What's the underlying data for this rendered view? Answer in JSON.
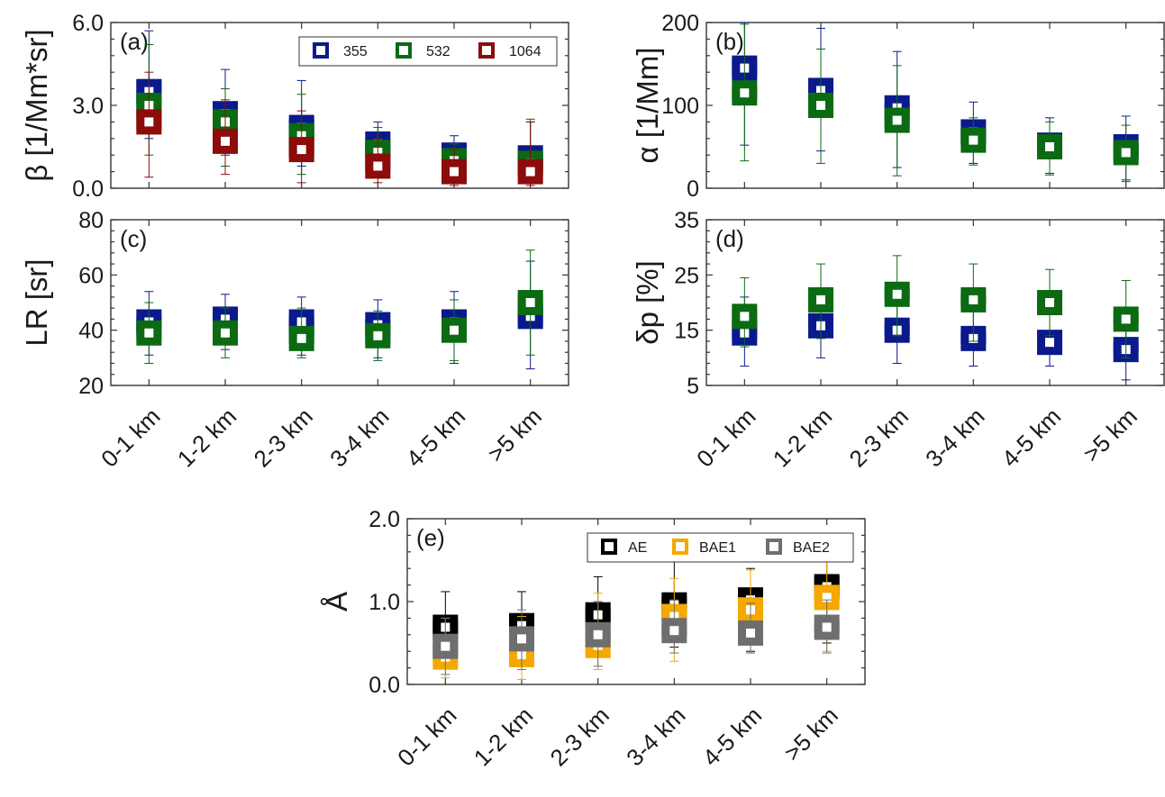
{
  "figure": {
    "categories": [
      "0-1 km",
      "1-2 km",
      "2-3 km",
      "3-4 km",
      "4-5 km",
      ">5 km"
    ],
    "colors": {
      "355": "#0a1a8c",
      "532": "#0b6a12",
      "1064": "#8c0b0b",
      "AE": "#000000",
      "BAE1": "#f5a800",
      "BAE2": "#6e6e6e"
    }
  },
  "chart_data": [
    {
      "type": "box",
      "panel": "(a)",
      "ylabel": "β [1/Mm*sr]",
      "ylim": [
        0,
        6
      ],
      "yticks": [
        "0.0",
        "3.0",
        "6.0"
      ],
      "legend": [
        "355",
        "532",
        "1064"
      ],
      "legend_position": "top-right",
      "series": [
        {
          "name": "355",
          "median": [
            3.5,
            2.7,
            2.2,
            1.6,
            1.2,
            1.1
          ],
          "q1": [
            3.1,
            2.3,
            1.8,
            1.3,
            0.9,
            0.8
          ],
          "q3": [
            3.9,
            3.0,
            2.5,
            1.8,
            1.4,
            1.3
          ],
          "whisker_low": [
            1.8,
            1.2,
            0.8,
            0.6,
            0.5,
            0.5
          ],
          "whisker_high": [
            5.7,
            4.3,
            3.9,
            2.4,
            1.9,
            2.4
          ]
        },
        {
          "name": "532",
          "median": [
            3.0,
            2.4,
            1.9,
            1.3,
            1.0,
            0.9
          ],
          "q1": [
            2.7,
            2.1,
            1.6,
            1.1,
            0.8,
            0.7
          ],
          "q3": [
            3.3,
            2.7,
            2.2,
            1.6,
            1.2,
            1.1
          ],
          "whisker_low": [
            1.2,
            0.8,
            0.5,
            0.4,
            0.3,
            0.3
          ],
          "whisker_high": [
            5.2,
            3.6,
            3.4,
            2.2,
            1.6,
            2.5
          ]
        },
        {
          "name": "1064",
          "median": [
            2.4,
            1.7,
            1.4,
            0.8,
            0.6,
            0.6
          ],
          "q1": [
            2.1,
            1.5,
            1.1,
            0.6,
            0.45,
            0.45
          ],
          "q3": [
            2.7,
            2.0,
            1.6,
            1.0,
            0.8,
            0.8
          ],
          "whisker_low": [
            0.4,
            0.5,
            0.2,
            0.2,
            0.1,
            0.1
          ],
          "whisker_high": [
            4.2,
            3.2,
            2.8,
            1.8,
            1.4,
            2.4
          ]
        }
      ]
    },
    {
      "type": "box",
      "panel": "(b)",
      "ylabel": "α [1/Mm]",
      "ylim": [
        0,
        200
      ],
      "yticks": [
        "0",
        "100",
        "200"
      ],
      "series": [
        {
          "name": "355",
          "median": [
            145,
            118,
            97,
            68,
            52,
            50
          ],
          "q1": [
            135,
            108,
            88,
            62,
            46,
            43
          ],
          "q3": [
            155,
            125,
            103,
            72,
            56,
            55
          ],
          "whisker_low": [
            52,
            45,
            25,
            30,
            18,
            10
          ],
          "whisker_high": [
            200,
            193,
            165,
            104,
            85,
            87
          ]
        },
        {
          "name": "532",
          "median": [
            115,
            100,
            82,
            58,
            50,
            43
          ],
          "q1": [
            107,
            92,
            74,
            52,
            44,
            37
          ],
          "q3": [
            123,
            107,
            90,
            63,
            55,
            48
          ],
          "whisker_low": [
            33,
            30,
            15,
            28,
            16,
            8
          ],
          "whisker_high": [
            198,
            168,
            148,
            85,
            80,
            76
          ]
        }
      ]
    },
    {
      "type": "box",
      "panel": "(c)",
      "ylabel": "LR [sr]",
      "ylim": [
        20,
        80
      ],
      "yticks": [
        "20",
        "40",
        "60",
        "80"
      ],
      "series": [
        {
          "name": "355",
          "median": [
            43,
            44,
            43,
            42,
            43,
            45
          ],
          "q1": [
            40,
            41,
            40,
            39,
            40,
            42
          ],
          "q3": [
            45,
            47,
            45,
            44,
            44,
            48
          ],
          "whisker_low": [
            31,
            33,
            31,
            30,
            28,
            26
          ],
          "whisker_high": [
            54,
            53,
            52,
            51,
            54,
            65
          ]
        },
        {
          "name": "532",
          "median": [
            39,
            39,
            37,
            38,
            40,
            50
          ],
          "q1": [
            37,
            37,
            35,
            35,
            38,
            46
          ],
          "q3": [
            42,
            42,
            40,
            41,
            42,
            53
          ],
          "whisker_low": [
            28,
            30,
            30,
            29,
            29,
            31
          ],
          "whisker_high": [
            50,
            48,
            48,
            47,
            51,
            69
          ]
        }
      ]
    },
    {
      "type": "box",
      "panel": "(d)",
      "ylabel": "δp [%]",
      "ylim": [
        5,
        35
      ],
      "yticks": [
        "5",
        "15",
        "25",
        "35"
      ],
      "series": [
        {
          "name": "355",
          "median": [
            14.5,
            15.8,
            15.0,
            13.5,
            12.8,
            11.5
          ],
          "q1": [
            13.5,
            14.8,
            14.0,
            12.5,
            12.0,
            10.8
          ],
          "q3": [
            16.0,
            17.0,
            16.2,
            14.8,
            14.0,
            12.8
          ],
          "whisker_low": [
            8.5,
            10.0,
            9.0,
            8.5,
            8.5,
            6.0
          ],
          "whisker_high": [
            21.0,
            21.5,
            21.0,
            19.0,
            18.0,
            17.5
          ]
        },
        {
          "name": "532",
          "median": [
            17.5,
            20.5,
            21.5,
            20.5,
            20.0,
            17.0
          ],
          "q1": [
            16.3,
            19.5,
            20.5,
            19.5,
            19.0,
            16.0
          ],
          "q3": [
            18.7,
            21.5,
            22.5,
            21.5,
            21.0,
            18.0
          ],
          "whisker_low": [
            12.0,
            13.5,
            14.0,
            13.0,
            14.0,
            10.0
          ],
          "whisker_high": [
            24.5,
            27.0,
            28.5,
            27.0,
            26.0,
            24.0
          ]
        }
      ]
    },
    {
      "type": "box",
      "panel": "(e)",
      "ylabel": "Å",
      "ylim": [
        0,
        2
      ],
      "yticks": [
        "0.0",
        "1.0",
        "2.0"
      ],
      "legend": [
        "AE",
        "BAE1",
        "BAE2"
      ],
      "legend_position": "top-right",
      "series": [
        {
          "name": "AE",
          "median": [
            0.69,
            0.71,
            0.84,
            0.96,
            1.02,
            1.18
          ],
          "q1": [
            0.6,
            0.62,
            0.74,
            0.86,
            0.92,
            1.06
          ],
          "q3": [
            0.78,
            0.8,
            0.94,
            1.06,
            1.12,
            1.3
          ],
          "whisker_low": [
            0.22,
            0.22,
            0.35,
            0.45,
            0.4,
            0.5
          ],
          "whisker_high": [
            1.12,
            1.12,
            1.3,
            1.48,
            1.4,
            1.55
          ]
        },
        {
          "name": "BAE1",
          "median": [
            0.33,
            0.36,
            0.47,
            0.82,
            0.9,
            1.05
          ],
          "q1": [
            0.28,
            0.3,
            0.42,
            0.78,
            0.82,
            0.96
          ],
          "q3": [
            0.42,
            0.44,
            0.54,
            0.9,
            0.98,
            1.14
          ],
          "whisker_low": [
            0.08,
            0.06,
            0.18,
            0.28,
            0.38,
            0.4
          ],
          "whisker_high": [
            0.8,
            0.82,
            1.1,
            1.28,
            1.38,
            1.5
          ]
        },
        {
          "name": "BAE2",
          "median": [
            0.46,
            0.55,
            0.6,
            0.65,
            0.62,
            0.69
          ],
          "q1": [
            0.4,
            0.48,
            0.52,
            0.58,
            0.55,
            0.62
          ],
          "q3": [
            0.52,
            0.62,
            0.68,
            0.72,
            0.7,
            0.76
          ],
          "whisker_low": [
            0.12,
            0.18,
            0.22,
            0.38,
            0.38,
            0.38
          ],
          "whisker_high": [
            0.8,
            0.9,
            1.0,
            1.02,
            0.98,
            1.02
          ]
        }
      ]
    }
  ]
}
